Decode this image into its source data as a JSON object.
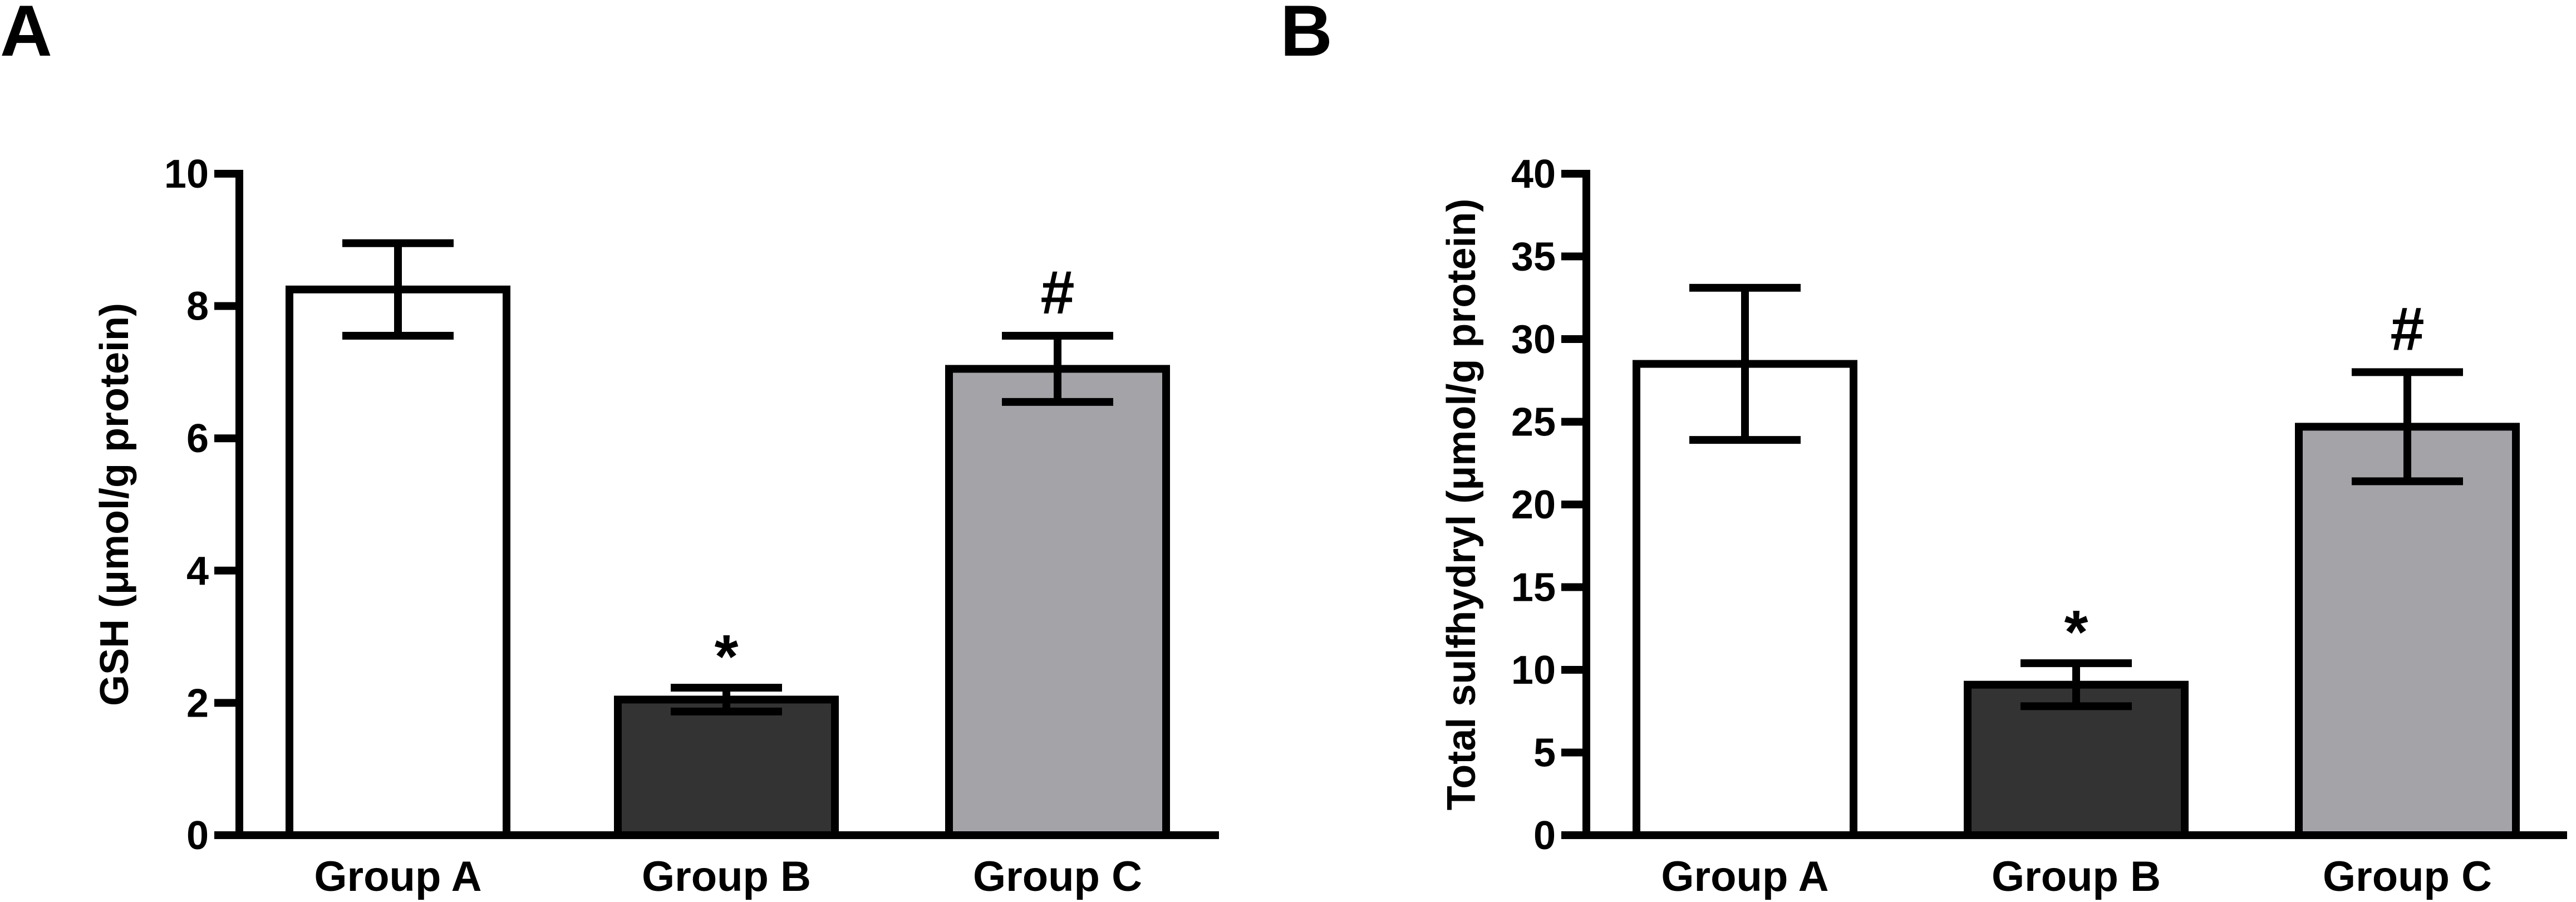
{
  "chart_data": [
    {
      "type": "bar",
      "panel_label": "A",
      "ylabel": "GSH (μmol/g protein)",
      "xlabel": "",
      "ylim": [
        0,
        10
      ],
      "yticks": [
        0,
        2,
        4,
        6,
        8,
        10
      ],
      "categories": [
        "Group A",
        "Group B",
        "Group C"
      ],
      "values": [
        8.25,
        2.05,
        7.05
      ],
      "errors": [
        0.7,
        0.18,
        0.5
      ],
      "annotations": [
        "",
        "*",
        "#"
      ],
      "bar_colors": [
        "#ffffff",
        "#333333",
        "#a3a3a8"
      ]
    },
    {
      "type": "bar",
      "panel_label": "B",
      "ylabel": "Total sulfhydryl (μmol/g protein)",
      "xlabel": "",
      "ylim": [
        0,
        40
      ],
      "yticks": [
        0,
        5,
        10,
        15,
        20,
        25,
        30,
        35,
        40
      ],
      "categories": [
        "Group A",
        "Group B",
        "Group C"
      ],
      "values": [
        28.5,
        9.1,
        24.7
      ],
      "errors": [
        4.6,
        1.3,
        3.3
      ],
      "annotations": [
        "",
        "*",
        "#"
      ],
      "bar_colors": [
        "#ffffff",
        "#333333",
        "#a3a3a8"
      ]
    }
  ]
}
